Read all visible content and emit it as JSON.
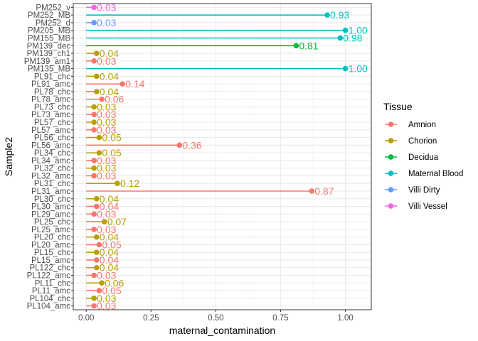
{
  "chart_data": {
    "type": "lollipop",
    "xlabel": "maternal_contamination",
    "ylabel": "Sample2",
    "xlim": [
      -0.05,
      1.1
    ],
    "xticks": [
      "0.00",
      "0.25",
      "0.50",
      "0.75",
      "1.00"
    ],
    "xtick_values": [
      0,
      0.25,
      0.5,
      0.75,
      1.0
    ],
    "grid": true,
    "legend": {
      "title": "Tissue",
      "placement": "right",
      "entries": [
        {
          "name": "Amnion",
          "color": "#F8766D"
        },
        {
          "name": "Chorion",
          "color": "#B79F00"
        },
        {
          "name": "Decidua",
          "color": "#00BA38"
        },
        {
          "name": "Maternal Blood",
          "color": "#00BFC4"
        },
        {
          "name": "Villi Dirty",
          "color": "#619CFF"
        },
        {
          "name": "Villi Vessel",
          "color": "#F564E3"
        }
      ]
    },
    "points": [
      {
        "sample": "PM252_v",
        "value": 0.03,
        "label": "0.03",
        "tissue": "Villi Vessel"
      },
      {
        "sample": "PM252_MB",
        "value": 0.93,
        "label": "0.93",
        "tissue": "Maternal Blood"
      },
      {
        "sample": "PM252_d",
        "value": 0.03,
        "label": "0.03",
        "tissue": "Villi Dirty"
      },
      {
        "sample": "PM205_MB",
        "value": 1.0,
        "label": "1.00",
        "tissue": "Maternal Blood"
      },
      {
        "sample": "PM155_MB",
        "value": 0.98,
        "label": "0.98",
        "tissue": "Maternal Blood"
      },
      {
        "sample": "PM139_dec",
        "value": 0.81,
        "label": "0.81",
        "tissue": "Decidua"
      },
      {
        "sample": "PM139_ch1",
        "value": 0.04,
        "label": "0.04",
        "tissue": "Chorion"
      },
      {
        "sample": "PM139_am1",
        "value": 0.03,
        "label": "0.03",
        "tissue": "Amnion"
      },
      {
        "sample": "PM135_MB",
        "value": 1.0,
        "label": "1.00",
        "tissue": "Maternal Blood"
      },
      {
        "sample": "PL91_chc",
        "value": 0.04,
        "label": "0.04",
        "tissue": "Chorion"
      },
      {
        "sample": "PL91_amc",
        "value": 0.14,
        "label": "0.14",
        "tissue": "Amnion"
      },
      {
        "sample": "PL78_chc",
        "value": 0.04,
        "label": "0.04",
        "tissue": "Chorion"
      },
      {
        "sample": "PL78_amc",
        "value": 0.06,
        "label": "0.06",
        "tissue": "Amnion"
      },
      {
        "sample": "PL73_chc",
        "value": 0.03,
        "label": "0.03",
        "tissue": "Chorion"
      },
      {
        "sample": "PL73_amc",
        "value": 0.03,
        "label": "0.03",
        "tissue": "Amnion"
      },
      {
        "sample": "PL57_chc",
        "value": 0.03,
        "label": "0.03",
        "tissue": "Chorion"
      },
      {
        "sample": "PL57_amc",
        "value": 0.03,
        "label": "0.03",
        "tissue": "Amnion"
      },
      {
        "sample": "PL56_chc",
        "value": 0.05,
        "label": "0.05",
        "tissue": "Chorion"
      },
      {
        "sample": "PL56_amc",
        "value": 0.36,
        "label": "0.36",
        "tissue": "Amnion"
      },
      {
        "sample": "PL34_chc",
        "value": 0.05,
        "label": "0.05",
        "tissue": "Chorion"
      },
      {
        "sample": "PL34_amc",
        "value": 0.03,
        "label": "0.03",
        "tissue": "Amnion"
      },
      {
        "sample": "PL32_chc",
        "value": 0.03,
        "label": "0.03",
        "tissue": "Chorion"
      },
      {
        "sample": "PL32_amc",
        "value": 0.03,
        "label": "0.03",
        "tissue": "Amnion"
      },
      {
        "sample": "PL31_chc",
        "value": 0.12,
        "label": "0.12",
        "tissue": "Chorion"
      },
      {
        "sample": "PL31_amc",
        "value": 0.87,
        "label": "0.87",
        "tissue": "Amnion"
      },
      {
        "sample": "PL30_chc",
        "value": 0.04,
        "label": "0.04",
        "tissue": "Chorion"
      },
      {
        "sample": "PL30_amc",
        "value": 0.04,
        "label": "0.04",
        "tissue": "Amnion"
      },
      {
        "sample": "PL29_amc",
        "value": 0.03,
        "label": "0.03",
        "tissue": "Amnion"
      },
      {
        "sample": "PL25_chc",
        "value": 0.07,
        "label": "0.07",
        "tissue": "Chorion"
      },
      {
        "sample": "PL25_amc",
        "value": 0.03,
        "label": "0.03",
        "tissue": "Amnion"
      },
      {
        "sample": "PL20_chc",
        "value": 0.04,
        "label": "0.04",
        "tissue": "Chorion"
      },
      {
        "sample": "PL20_amc",
        "value": 0.05,
        "label": "0.05",
        "tissue": "Amnion"
      },
      {
        "sample": "PL15_chc",
        "value": 0.04,
        "label": "0.04",
        "tissue": "Chorion"
      },
      {
        "sample": "PL15_amc",
        "value": 0.04,
        "label": "0.04",
        "tissue": "Amnion"
      },
      {
        "sample": "PL122_chc",
        "value": 0.04,
        "label": "0.04",
        "tissue": "Chorion"
      },
      {
        "sample": "PL122_amc",
        "value": 0.03,
        "label": "0.03",
        "tissue": "Amnion"
      },
      {
        "sample": "PL11_chc",
        "value": 0.06,
        "label": "0.06",
        "tissue": "Chorion"
      },
      {
        "sample": "PL11_amc",
        "value": 0.05,
        "label": "0.05",
        "tissue": "Amnion"
      },
      {
        "sample": "PL104_chc",
        "value": 0.03,
        "label": "0.03",
        "tissue": "Chorion"
      },
      {
        "sample": "PL104_amc",
        "value": 0.03,
        "label": "0.03",
        "tissue": "Amnion"
      }
    ]
  }
}
